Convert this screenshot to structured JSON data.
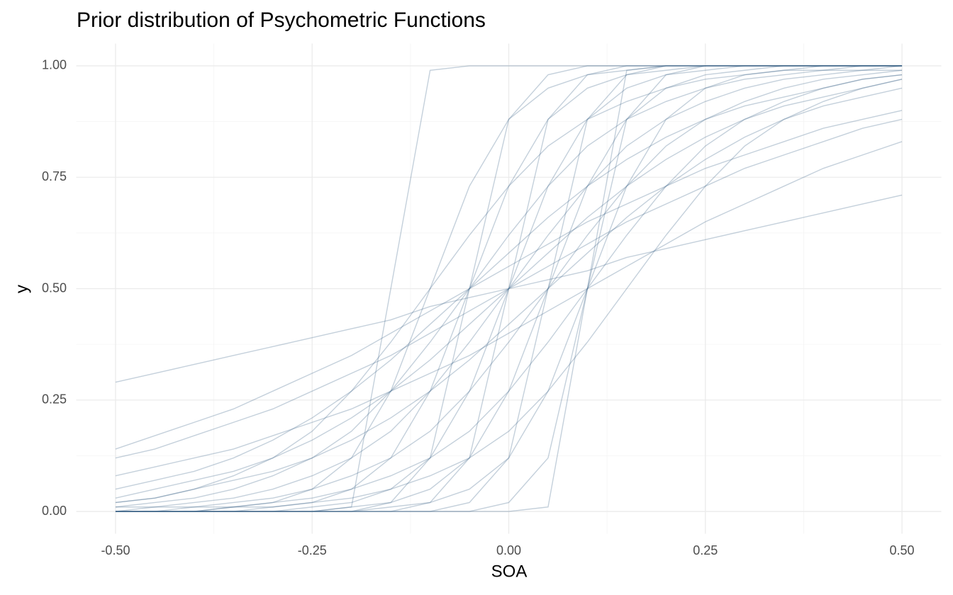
{
  "chart_data": {
    "type": "line",
    "title": "Prior distribution of Psychometric Functions",
    "x_label": "SOA",
    "y_label": "y",
    "xlim": [
      -0.55,
      0.55
    ],
    "ylim": [
      -0.05,
      1.05
    ],
    "xticks": [
      {
        "value": -0.5,
        "label": "-0.50"
      },
      {
        "value": -0.25,
        "label": "-0.25"
      },
      {
        "value": 0,
        "label": "0.00"
      },
      {
        "value": 0.25,
        "label": "0.25"
      },
      {
        "value": 0.5,
        "label": "0.50"
      }
    ],
    "yticks": [
      {
        "value": 0,
        "label": "0.00"
      },
      {
        "value": 0.25,
        "label": "0.25"
      },
      {
        "value": 0.5,
        "label": "0.50"
      },
      {
        "value": 0.75,
        "label": "0.75"
      },
      {
        "value": 1,
        "label": "1.00"
      }
    ],
    "xminor": [
      -0.375,
      -0.125,
      0.125,
      0.375
    ],
    "yminor": [
      0.125,
      0.375,
      0.625,
      0.875
    ],
    "grid": true,
    "color": "#3d6389",
    "opacity": 0.3,
    "x": [
      -0.5,
      -0.45,
      -0.4,
      -0.35,
      -0.3,
      -0.25,
      -0.2,
      -0.15,
      -0.1,
      -0.05,
      0,
      0.05,
      0.1,
      0.15,
      0.2,
      0.25,
      0.3,
      0.35,
      0.4,
      0.45,
      0.5
    ],
    "series": [
      {
        "values": [
          0.29,
          0.31,
          0.33,
          0.35,
          0.37,
          0.39,
          0.41,
          0.43,
          0.46,
          0.48,
          0.5,
          0.52,
          0.54,
          0.57,
          0.59,
          0.61,
          0.63,
          0.65,
          0.67,
          0.69,
          0.71
        ]
      },
      {
        "values": [
          0.01,
          0.01,
          0.02,
          0.03,
          0.05,
          0.08,
          0.12,
          0.18,
          0.27,
          0.38,
          0.5,
          0.62,
          0.73,
          0.82,
          0.88,
          0.92,
          0.95,
          0.97,
          0.98,
          0.99,
          0.99
        ]
      },
      {
        "values": [
          0,
          0,
          0,
          0,
          0,
          0.01,
          0.02,
          0.05,
          0.12,
          0.27,
          0.5,
          0.73,
          0.88,
          0.95,
          0.98,
          0.99,
          1,
          1,
          1,
          1,
          1
        ]
      },
      {
        "values": [
          0,
          0,
          0,
          0,
          0,
          0,
          0.01,
          0.5,
          0.99,
          1,
          1,
          1,
          1,
          1,
          1,
          1,
          1,
          1,
          1,
          1,
          1
        ]
      },
      {
        "values": [
          0,
          0,
          0,
          0,
          0,
          0,
          0,
          0,
          0,
          0,
          0,
          0.01,
          0.5,
          0.99,
          1,
          1,
          1,
          1,
          1,
          1,
          1
        ]
      },
      {
        "values": [
          0,
          0,
          0,
          0,
          0,
          0,
          0,
          0.02,
          0.12,
          0.5,
          0.88,
          0.98,
          1,
          1,
          1,
          1,
          1,
          1,
          1,
          1,
          1
        ]
      },
      {
        "values": [
          0,
          0,
          0,
          0,
          0,
          0,
          0,
          0,
          0,
          0.02,
          0.12,
          0.5,
          0.88,
          0.98,
          1,
          1,
          1,
          1,
          1,
          1,
          1
        ]
      },
      {
        "values": [
          0,
          0,
          0,
          0,
          0,
          0,
          0,
          0,
          0,
          0,
          0.02,
          0.12,
          0.5,
          0.88,
          0.98,
          1,
          1,
          1,
          1,
          1,
          1
        ]
      },
      {
        "values": [
          0,
          0,
          0,
          0.01,
          0.02,
          0.05,
          0.12,
          0.27,
          0.5,
          0.73,
          0.88,
          0.95,
          0.98,
          0.99,
          1,
          1,
          1,
          1,
          1,
          1,
          1
        ]
      },
      {
        "values": [
          0,
          0,
          0,
          0,
          0,
          0,
          0.01,
          0.02,
          0.05,
          0.12,
          0.27,
          0.5,
          0.73,
          0.88,
          0.95,
          0.98,
          0.99,
          1,
          1,
          1,
          1
        ]
      },
      {
        "values": [
          0,
          0,
          0,
          0,
          0,
          0,
          0,
          0.01,
          0.02,
          0.05,
          0.12,
          0.27,
          0.5,
          0.73,
          0.88,
          0.95,
          0.98,
          0.99,
          1,
          1,
          1
        ]
      },
      {
        "values": [
          0.01,
          0.02,
          0.03,
          0.05,
          0.08,
          0.12,
          0.18,
          0.27,
          0.38,
          0.5,
          0.62,
          0.73,
          0.82,
          0.88,
          0.92,
          0.95,
          0.97,
          0.98,
          0.99,
          0.99,
          1
        ]
      },
      {
        "values": [
          0,
          0.01,
          0.01,
          0.02,
          0.03,
          0.05,
          0.08,
          0.12,
          0.18,
          0.27,
          0.38,
          0.5,
          0.62,
          0.73,
          0.82,
          0.88,
          0.92,
          0.95,
          0.97,
          0.98,
          0.99
        ]
      },
      {
        "values": [
          0,
          0,
          0.01,
          0.01,
          0.02,
          0.03,
          0.05,
          0.08,
          0.12,
          0.18,
          0.27,
          0.38,
          0.5,
          0.62,
          0.73,
          0.82,
          0.88,
          0.92,
          0.95,
          0.97,
          0.98
        ]
      },
      {
        "values": [
          0.02,
          0.03,
          0.05,
          0.08,
          0.12,
          0.18,
          0.27,
          0.38,
          0.5,
          0.62,
          0.73,
          0.82,
          0.88,
          0.92,
          0.95,
          0.97,
          0.98,
          0.99,
          0.99,
          1,
          1
        ]
      },
      {
        "values": [
          0.03,
          0.05,
          0.07,
          0.09,
          0.12,
          0.16,
          0.21,
          0.27,
          0.34,
          0.42,
          0.5,
          0.58,
          0.66,
          0.73,
          0.79,
          0.84,
          0.88,
          0.91,
          0.93,
          0.95,
          0.97
        ]
      },
      {
        "values": [
          0.02,
          0.03,
          0.05,
          0.07,
          0.09,
          0.12,
          0.16,
          0.21,
          0.27,
          0.34,
          0.42,
          0.5,
          0.58,
          0.66,
          0.73,
          0.79,
          0.84,
          0.88,
          0.91,
          0.93,
          0.95
        ]
      },
      {
        "values": [
          0.05,
          0.07,
          0.09,
          0.12,
          0.16,
          0.21,
          0.27,
          0.34,
          0.42,
          0.5,
          0.58,
          0.66,
          0.73,
          0.79,
          0.84,
          0.88,
          0.91,
          0.93,
          0.95,
          0.97,
          0.98
        ]
      },
      {
        "values": [
          0.12,
          0.14,
          0.17,
          0.2,
          0.23,
          0.27,
          0.31,
          0.35,
          0.4,
          0.45,
          0.5,
          0.55,
          0.6,
          0.65,
          0.69,
          0.73,
          0.77,
          0.8,
          0.83,
          0.86,
          0.88
        ]
      },
      {
        "values": [
          0.08,
          0.1,
          0.12,
          0.14,
          0.17,
          0.2,
          0.23,
          0.27,
          0.31,
          0.35,
          0.4,
          0.45,
          0.5,
          0.55,
          0.6,
          0.65,
          0.69,
          0.73,
          0.77,
          0.8,
          0.83
        ]
      },
      {
        "values": [
          0.14,
          0.17,
          0.2,
          0.23,
          0.27,
          0.31,
          0.35,
          0.4,
          0.45,
          0.5,
          0.55,
          0.6,
          0.65,
          0.69,
          0.73,
          0.77,
          0.8,
          0.83,
          0.86,
          0.88,
          0.9
        ]
      },
      {
        "values": [
          0,
          0,
          0,
          0.01,
          0.01,
          0.02,
          0.03,
          0.05,
          0.08,
          0.12,
          0.18,
          0.27,
          0.38,
          0.5,
          0.62,
          0.73,
          0.82,
          0.88,
          0.92,
          0.95,
          0.97
        ]
      },
      {
        "values": [
          0,
          0,
          0,
          0,
          0.01,
          0.02,
          0.05,
          0.12,
          0.27,
          0.5,
          0.73,
          0.88,
          0.95,
          0.98,
          0.99,
          1,
          1,
          1,
          1,
          1,
          1
        ]
      },
      {
        "values": [
          0,
          0,
          0,
          0,
          0,
          0,
          0,
          0,
          0.02,
          0.12,
          0.5,
          0.88,
          0.98,
          1,
          1,
          1,
          1,
          1,
          1,
          1,
          1
        ]
      }
    ]
  }
}
